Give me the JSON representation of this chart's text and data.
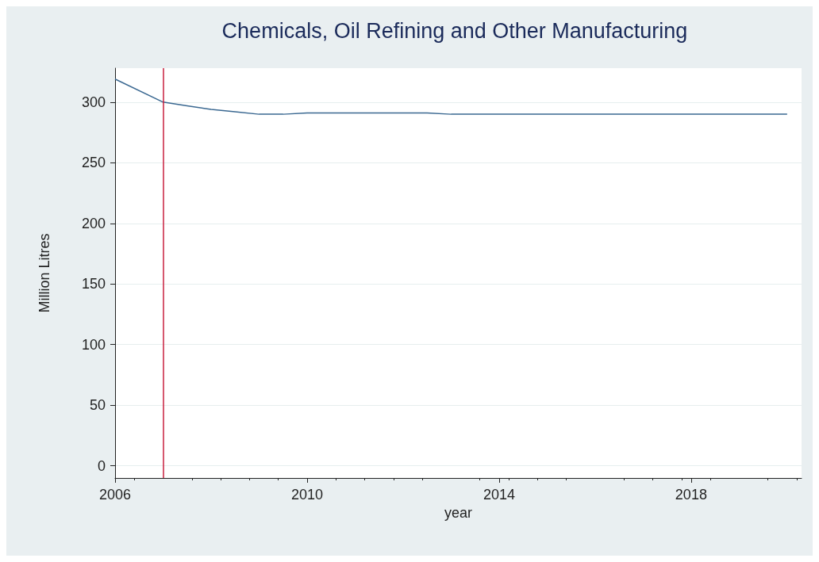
{
  "chart_data": {
    "type": "line",
    "title": "Chemicals, Oil Refining and Other Manufacturing",
    "xlabel": "year",
    "ylabel": "Million Litres",
    "x": [
      2006,
      2007,
      2007.5,
      2008,
      2008.5,
      2009,
      2009.5,
      2010,
      2011,
      2012,
      2012.5,
      2013,
      2014,
      2016,
      2018,
      2020
    ],
    "series": [
      {
        "color": "#3a6891",
        "values": [
          319,
          300,
          297,
          294,
          292,
          290,
          290,
          291,
          291,
          291,
          291,
          290,
          290,
          290,
          290,
          290
        ]
      }
    ],
    "xlim": [
      2006,
      2020.3
    ],
    "xticks": [
      2006,
      2010,
      2014,
      2018
    ],
    "ylim": [
      -10,
      328
    ],
    "yticks": [
      0,
      50,
      100,
      150,
      200,
      250,
      300
    ],
    "ref_lines": [
      {
        "axis": "x",
        "value": 2007,
        "color": "#c8203f"
      }
    ],
    "grid": "y",
    "marker": "none",
    "line_style": "solid"
  }
}
